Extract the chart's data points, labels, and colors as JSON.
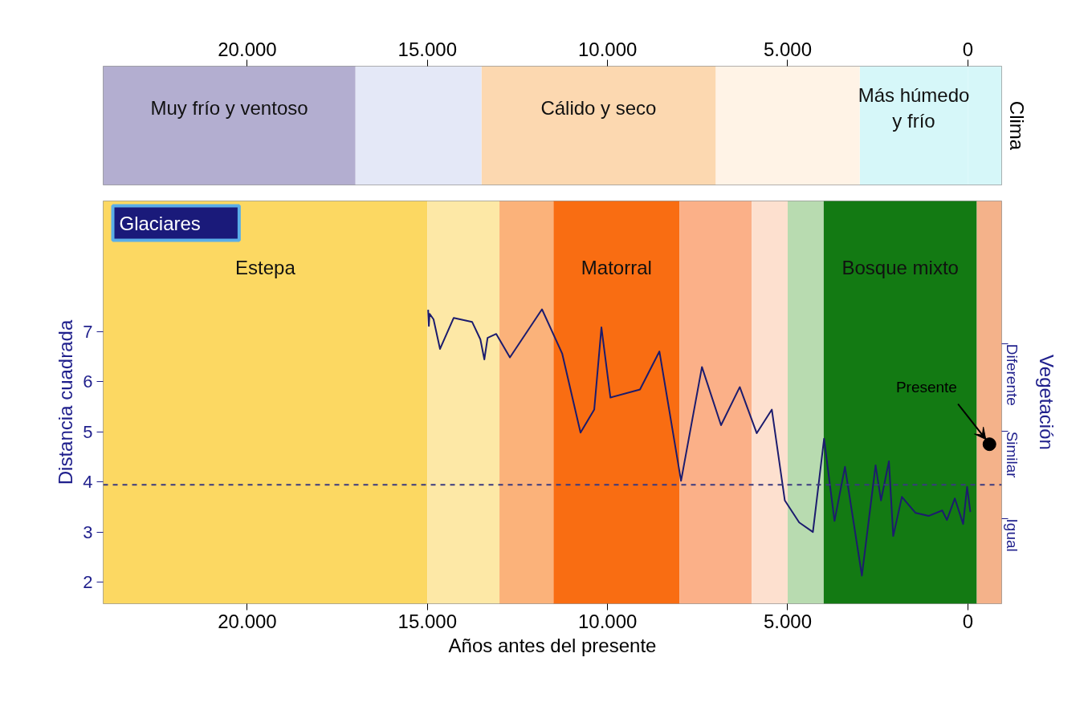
{
  "chart_data": [
    {
      "type": "bar",
      "orientation": "horizontal",
      "stacked": true,
      "categories": [
        null
      ],
      "ylabel": "Clima",
      "xlim": [
        24000,
        -940
      ],
      "tick_labels": "x",
      "xticks": [
        {
          "value": 20000,
          "label": "20.000"
        },
        {
          "value": 15000,
          "label": "15.000"
        },
        {
          "value": 10000,
          "label": "10.000"
        },
        {
          "value": 5000,
          "label": "5.000"
        },
        0
      ],
      "series": [
        {
          "name": "Más húmedo\ny frío",
          "color": "#d6f7f9",
          "values": [
            3000
          ]
        },
        {
          "color": "#fff3e6",
          "values": [
            4000
          ]
        },
        {
          "name": "Cálido y seco",
          "color": "#fcd8b0",
          "values": [
            6500
          ]
        },
        {
          "color": "#e4e8f7",
          "values": [
            3500
          ]
        },
        {
          "name": "Muy frío y ventoso",
          "color": "#b3aed0",
          "values": [
            7000
          ]
        },
        {
          "color": "#d6f7f9",
          "values": [
            -940
          ]
        }
      ]
    },
    {
      "type": "line",
      "xlabel": "Años antes del presente",
      "ylabel": "Distancia cuadrada",
      "y2label": "Vegetación",
      "marker": "none",
      "line_style": "solid",
      "xlim": [
        24000,
        -940
      ],
      "ylim": [
        1.57,
        9.6
      ],
      "xticks": [
        {
          "value": 20000,
          "label": "20.000"
        },
        {
          "value": 15000,
          "label": "15.000"
        },
        {
          "value": 10000,
          "label": "10.000"
        },
        {
          "value": 5000,
          "label": "5.000"
        },
        0
      ],
      "yticks": [
        2,
        3,
        4,
        5,
        6,
        7
      ],
      "x": [
        14980,
        14960,
        14940,
        14830,
        14650,
        14270,
        13760,
        13530,
        13420,
        13330,
        13090,
        12710,
        11820,
        11260,
        10750,
        10370,
        10170,
        9920,
        9100,
        8560,
        7960,
        7380,
        6850,
        6330,
        5860,
        5440,
        5080,
        4680,
        4300,
        3990,
        3700,
        3410,
        2940,
        2560,
        2410,
        2190,
        2070,
        1830,
        1450,
        1090,
        710,
        580,
        360,
        130,
        20,
        -70
      ],
      "series": [
        {
          "color": "#1c1c6e",
          "values": [
            7.43,
            7.11,
            7.35,
            7.24,
            6.65,
            7.27,
            7.19,
            6.84,
            6.44,
            6.87,
            6.95,
            6.48,
            7.44,
            6.56,
            4.98,
            5.44,
            7.08,
            5.68,
            5.84,
            6.6,
            4.02,
            6.29,
            5.13,
            5.89,
            4.97,
            5.44,
            3.63,
            3.19,
            3.0,
            4.86,
            3.22,
            4.3,
            2.13,
            4.33,
            3.63,
            4.41,
            2.92,
            3.7,
            3.38,
            3.32,
            3.43,
            3.24,
            3.67,
            3.16,
            3.9,
            3.4
          ]
        },
        {
          "type": "scatter",
          "marker": "circle",
          "color": "#000000",
          "x": [
            -600
          ],
          "values": [
            4.75
          ]
        }
      ],
      "ref_lines": [
        {
          "axis": "y",
          "value": 3.94,
          "label": null,
          "color": "#3a3a80",
          "line_style": "dashed"
        }
      ],
      "bands": [
        {
          "axis": "x",
          "from": 24000,
          "to": 15000,
          "label": "Estepa",
          "color": "#fcd862"
        },
        {
          "axis": "x",
          "from": 15000,
          "to": 13000,
          "label": null,
          "color": "#fde8a6"
        },
        {
          "axis": "x",
          "from": 13000,
          "to": 11500,
          "label": null,
          "color": "#fbb27a"
        },
        {
          "axis": "x",
          "from": 11500,
          "to": 8000,
          "label": "Matorral",
          "color": "#f96d12"
        },
        {
          "axis": "x",
          "from": 8000,
          "to": 6000,
          "label": null,
          "color": "#fbb088"
        },
        {
          "axis": "x",
          "from": 6000,
          "to": 5000,
          "label": null,
          "color": "#fde0cf"
        },
        {
          "axis": "x",
          "from": 5000,
          "to": 4000,
          "label": null,
          "color": "#b8dbb0"
        },
        {
          "axis": "x",
          "from": 4000,
          "to": -250,
          "label": "Bosque mixto",
          "color": "#137a13"
        },
        {
          "axis": "x",
          "from": -250,
          "to": -940,
          "label": null,
          "color": "#f4b28a"
        }
      ],
      "annotations": [
        "Glaciares",
        "Igual",
        "Similar",
        "Diferente",
        {
          "text": "Presente",
          "x": -600,
          "y": 4.75
        }
      ]
    }
  ]
}
